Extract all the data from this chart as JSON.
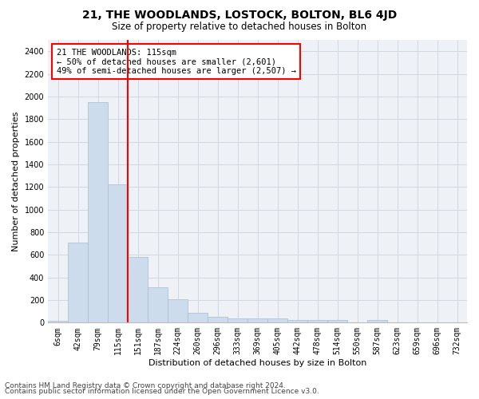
{
  "title": "21, THE WOODLANDS, LOSTOCK, BOLTON, BL6 4JD",
  "subtitle": "Size of property relative to detached houses in Bolton",
  "xlabel": "Distribution of detached houses by size in Bolton",
  "ylabel": "Number of detached properties",
  "categories": [
    "6sqm",
    "42sqm",
    "79sqm",
    "115sqm",
    "151sqm",
    "187sqm",
    "224sqm",
    "260sqm",
    "296sqm",
    "333sqm",
    "369sqm",
    "405sqm",
    "442sqm",
    "478sqm",
    "514sqm",
    "550sqm",
    "587sqm",
    "623sqm",
    "659sqm",
    "696sqm",
    "732sqm"
  ],
  "values": [
    15,
    710,
    1950,
    1220,
    580,
    310,
    205,
    85,
    50,
    40,
    35,
    35,
    25,
    20,
    20,
    5,
    25,
    2,
    2,
    2,
    2
  ],
  "bar_color": "#ccdcec",
  "bar_edge_color": "#aabccc",
  "red_line_x": 3.5,
  "ylim": [
    0,
    2500
  ],
  "yticks": [
    0,
    200,
    400,
    600,
    800,
    1000,
    1200,
    1400,
    1600,
    1800,
    2000,
    2200,
    2400
  ],
  "annotation_title": "21 THE WOODLANDS: 115sqm",
  "annotation_line1": "← 50% of detached houses are smaller (2,601)",
  "annotation_line2": "49% of semi-detached houses are larger (2,507) →",
  "footer1": "Contains HM Land Registry data © Crown copyright and database right 2024.",
  "footer2": "Contains public sector information licensed under the Open Government Licence v3.0.",
  "bg_color": "#eef2f7",
  "grid_color": "#d0d8e4",
  "title_fontsize": 10,
  "subtitle_fontsize": 8.5,
  "ylabel_fontsize": 8,
  "xlabel_fontsize": 8,
  "tick_fontsize": 7,
  "annotation_fontsize": 7.5,
  "footer_fontsize": 6.5
}
